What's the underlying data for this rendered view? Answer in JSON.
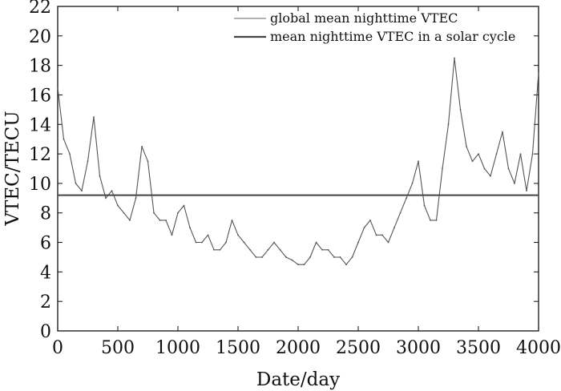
{
  "chart_data": {
    "type": "line",
    "xlabel": "Date/day",
    "ylabel": "VTEC/TECU",
    "xlim": [
      0,
      4000
    ],
    "ylim": [
      0,
      22
    ],
    "x_ticks": [
      0,
      500,
      1000,
      1500,
      2000,
      2500,
      3000,
      3500,
      4000
    ],
    "y_ticks": [
      0,
      2,
      4,
      6,
      8,
      10,
      12,
      14,
      16,
      18,
      20,
      22
    ],
    "grid": false,
    "legend_position": "top-right",
    "series": [
      {
        "name": "global mean nighttime VTEC",
        "color": "#555555",
        "line_width": "thin",
        "x": [
          0,
          50,
          100,
          150,
          200,
          250,
          300,
          350,
          400,
          450,
          500,
          550,
          600,
          650,
          700,
          750,
          800,
          850,
          900,
          950,
          1000,
          1050,
          1100,
          1150,
          1200,
          1250,
          1300,
          1350,
          1400,
          1450,
          1500,
          1550,
          1600,
          1650,
          1700,
          1750,
          1800,
          1850,
          1900,
          1950,
          2000,
          2050,
          2100,
          2150,
          2200,
          2250,
          2300,
          2350,
          2400,
          2450,
          2500,
          2550,
          2600,
          2650,
          2700,
          2750,
          2800,
          2850,
          2900,
          2950,
          3000,
          3050,
          3100,
          3150,
          3200,
          3250,
          3300,
          3350,
          3400,
          3450,
          3500,
          3550,
          3600,
          3650,
          3700,
          3750,
          3800,
          3850,
          3900,
          3950,
          4000
        ],
        "values": [
          16.5,
          13.0,
          12.0,
          10.0,
          9.5,
          11.5,
          14.5,
          10.5,
          9.0,
          9.5,
          8.5,
          8.0,
          7.5,
          9.0,
          12.5,
          11.5,
          8.0,
          7.5,
          7.5,
          6.5,
          8.0,
          8.5,
          7.0,
          6.0,
          6.0,
          6.5,
          5.5,
          5.5,
          6.0,
          7.5,
          6.5,
          6.0,
          5.5,
          5.0,
          5.0,
          5.5,
          6.0,
          5.5,
          5.0,
          4.8,
          4.5,
          4.5,
          5.0,
          6.0,
          5.5,
          5.5,
          5.0,
          5.0,
          4.5,
          5.0,
          6.0,
          7.0,
          7.5,
          6.5,
          6.5,
          6.0,
          7.0,
          8.0,
          9.0,
          10.0,
          11.5,
          8.5,
          7.5,
          7.5,
          11.0,
          14.0,
          18.5,
          15.0,
          12.5,
          11.5,
          12.0,
          11.0,
          10.5,
          12.0,
          13.5,
          11.0,
          10.0,
          12.0,
          9.5,
          12.0,
          17.5
        ]
      },
      {
        "name": "mean nighttime VTEC in a solar cycle",
        "color": "#444444",
        "line_width": "thick",
        "x": [
          0,
          4000
        ],
        "values": [
          9.2,
          9.2
        ]
      }
    ]
  }
}
